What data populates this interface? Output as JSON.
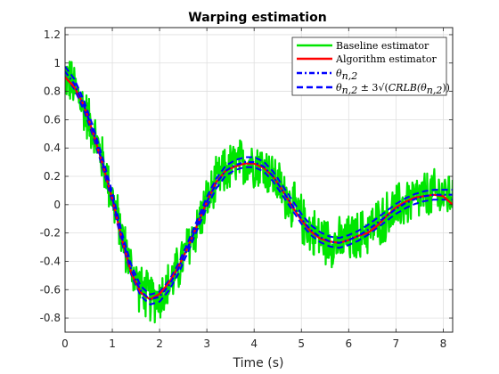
{
  "chart_data": {
    "type": "line",
    "title": "Warping estimation",
    "xlabel": "Time (s)",
    "ylabel": "",
    "xlim": [
      0,
      8.2
    ],
    "ylim": [
      -0.9,
      1.25
    ],
    "xticks": [
      0,
      1,
      2,
      3,
      4,
      5,
      6,
      7,
      8
    ],
    "xtick_labels": [
      "0",
      "1",
      "2",
      "3",
      "4",
      "5",
      "6",
      "7",
      "8"
    ],
    "yticks": [
      -0.8,
      -0.6,
      -0.4,
      -0.2,
      0,
      0.2,
      0.4,
      0.6,
      0.8,
      1,
      1.2
    ],
    "ytick_labels": [
      "-0.8",
      "-0.6",
      "-0.4",
      "-0.2",
      "0",
      "0.2",
      "0.4",
      "0.6",
      "0.8",
      "1",
      "1.2"
    ],
    "grid": true,
    "legend_position": "top-right",
    "series": [
      {
        "name": "Baseline estimator",
        "color": "#00e600",
        "style": "solid",
        "noise_amplitude": 0.2,
        "x": [
          0,
          0.2,
          0.4,
          0.6,
          0.8,
          1.0,
          1.2,
          1.4,
          1.6,
          1.8,
          2.0,
          2.2,
          2.4,
          2.6,
          2.8,
          3.0,
          3.2,
          3.4,
          3.6,
          3.8,
          4.0,
          4.2,
          4.4,
          4.6,
          4.8,
          5.0,
          5.2,
          5.4,
          5.6,
          5.8,
          6.0,
          6.2,
          6.4,
          6.6,
          6.8,
          7.0,
          7.2,
          7.4,
          7.6,
          7.8,
          8.0,
          8.2
        ],
        "y": [
          0.92,
          0.82,
          0.68,
          0.52,
          0.3,
          0.05,
          -0.22,
          -0.45,
          -0.6,
          -0.66,
          -0.65,
          -0.57,
          -0.45,
          -0.3,
          -0.15,
          0.02,
          0.15,
          0.24,
          0.28,
          0.3,
          0.3,
          0.27,
          0.2,
          0.1,
          0.0,
          -0.1,
          -0.18,
          -0.23,
          -0.26,
          -0.27,
          -0.25,
          -0.22,
          -0.18,
          -0.13,
          -0.08,
          -0.03,
          0.01,
          0.04,
          0.06,
          0.07,
          0.07,
          0.07
        ]
      },
      {
        "name": "Algorithm estimator",
        "color": "#ff0000",
        "style": "solid",
        "x": [
          0,
          0.2,
          0.4,
          0.6,
          0.8,
          1.0,
          1.2,
          1.4,
          1.6,
          1.8,
          2.0,
          2.2,
          2.4,
          2.6,
          2.8,
          3.0,
          3.2,
          3.4,
          3.6,
          3.8,
          4.0,
          4.2,
          4.4,
          4.6,
          4.8,
          5.0,
          5.2,
          5.4,
          5.6,
          5.8,
          6.0,
          6.2,
          6.4,
          6.6,
          6.8,
          7.0,
          7.2,
          7.4,
          7.6,
          7.8,
          8.0,
          8.2
        ],
        "y": [
          0.9,
          0.83,
          0.7,
          0.5,
          0.28,
          0.04,
          -0.24,
          -0.48,
          -0.62,
          -0.67,
          -0.63,
          -0.55,
          -0.44,
          -0.3,
          -0.14,
          0.02,
          0.16,
          0.24,
          0.27,
          0.29,
          0.29,
          0.26,
          0.2,
          0.1,
          -0.01,
          -0.11,
          -0.19,
          -0.24,
          -0.26,
          -0.27,
          -0.25,
          -0.22,
          -0.2,
          -0.15,
          -0.08,
          -0.02,
          0.02,
          0.05,
          0.06,
          0.07,
          0.06,
          0.0
        ]
      },
      {
        "name": "θ_{n,2}",
        "color": "#0000ff",
        "style": "dashdot",
        "x": [
          0,
          0.2,
          0.4,
          0.6,
          0.8,
          1.0,
          1.2,
          1.4,
          1.6,
          1.8,
          2.0,
          2.2,
          2.4,
          2.6,
          2.8,
          3.0,
          3.2,
          3.4,
          3.6,
          3.8,
          4.0,
          4.2,
          4.4,
          4.6,
          4.8,
          5.0,
          5.2,
          5.4,
          5.6,
          5.8,
          6.0,
          6.2,
          6.4,
          6.6,
          6.8,
          7.0,
          7.2,
          7.4,
          7.6,
          7.8,
          8.0,
          8.2
        ],
        "y": [
          0.94,
          0.85,
          0.7,
          0.51,
          0.29,
          0.05,
          -0.23,
          -0.46,
          -0.61,
          -0.67,
          -0.65,
          -0.57,
          -0.45,
          -0.3,
          -0.14,
          0.02,
          0.15,
          0.24,
          0.28,
          0.3,
          0.3,
          0.27,
          0.2,
          0.1,
          0.0,
          -0.1,
          -0.18,
          -0.23,
          -0.26,
          -0.27,
          -0.25,
          -0.22,
          -0.18,
          -0.13,
          -0.08,
          -0.03,
          0.01,
          0.04,
          0.06,
          0.07,
          0.07,
          0.07
        ]
      },
      {
        "name": "θ_{n,2} ± 3√(CRLB(θ_{n,2}))",
        "color": "#0000ff",
        "style": "dashed",
        "band_halfwidth": 0.035
      }
    ],
    "legend": [
      {
        "label": "Baseline estimator",
        "color": "#00e600",
        "style": "solid"
      },
      {
        "label": "Algorithm estimator",
        "color": "#ff0000",
        "style": "solid"
      },
      {
        "label_base": "θ",
        "label_sub": "n,2",
        "color": "#0000ff",
        "style": "dashdot"
      },
      {
        "label_base": "θ",
        "label_sub": "n,2",
        "label_pm": " ± 3",
        "label_fn": "CRLB(θ",
        "label_fn_sub": "n,2",
        "label_fn_close": "))",
        "color": "#0000ff",
        "style": "dashed"
      }
    ]
  }
}
